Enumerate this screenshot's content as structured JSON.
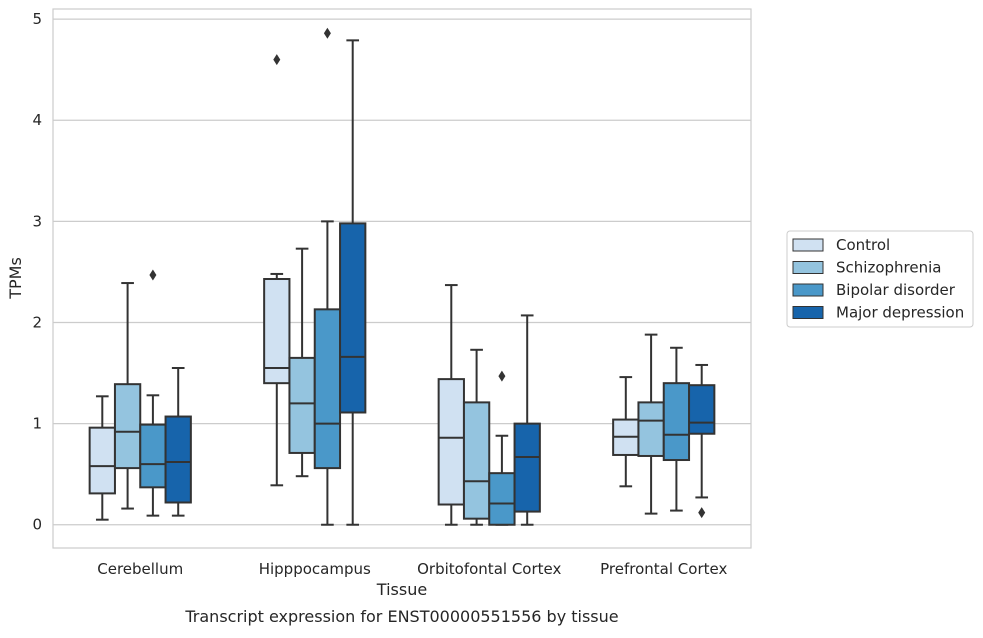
{
  "caption": "Transcript expression for ENST00000551556 by tissue",
  "chart_data": {
    "type": "box",
    "xlabel": "Tissue",
    "ylabel": "TPMs",
    "ylim": [
      -0.23,
      5.1
    ],
    "yticks": [
      0,
      1,
      2,
      3,
      4,
      5
    ],
    "categories": [
      "Cerebellum",
      "Hipppocampus",
      "Orbitofontal Cortex",
      "Prefrontal Cortex"
    ],
    "legend_position": "right",
    "grid": "horizontal",
    "series": [
      {
        "name": "Control",
        "color": "#d0e1f2",
        "boxes": [
          {
            "min": 0.05,
            "q1": 0.31,
            "median": 0.58,
            "q3": 0.96,
            "max": 1.27,
            "outliers": []
          },
          {
            "min": 0.39,
            "q1": 1.4,
            "median": 1.55,
            "q3": 2.43,
            "max": 2.48,
            "outliers": [
              4.6
            ]
          },
          {
            "min": 0.0,
            "q1": 0.2,
            "median": 0.86,
            "q3": 1.44,
            "max": 2.37,
            "outliers": []
          },
          {
            "min": 0.38,
            "q1": 0.69,
            "median": 0.87,
            "q3": 1.04,
            "max": 1.46,
            "outliers": []
          }
        ]
      },
      {
        "name": "Schizophrenia",
        "color": "#94c4df",
        "boxes": [
          {
            "min": 0.16,
            "q1": 0.56,
            "median": 0.92,
            "q3": 1.39,
            "max": 2.39,
            "outliers": []
          },
          {
            "min": 0.48,
            "q1": 0.71,
            "median": 1.2,
            "q3": 1.65,
            "max": 2.73,
            "outliers": []
          },
          {
            "min": 0.0,
            "q1": 0.06,
            "median": 0.43,
            "q3": 1.21,
            "max": 1.73,
            "outliers": []
          },
          {
            "min": 0.11,
            "q1": 0.68,
            "median": 1.03,
            "q3": 1.21,
            "max": 1.88,
            "outliers": []
          }
        ]
      },
      {
        "name": "Bipolar disorder",
        "color": "#4a98c9",
        "boxes": [
          {
            "min": 0.09,
            "q1": 0.37,
            "median": 0.6,
            "q3": 0.99,
            "max": 1.28,
            "outliers": [
              2.47
            ]
          },
          {
            "min": 0.0,
            "q1": 0.56,
            "median": 1.0,
            "q3": 2.13,
            "max": 3.0,
            "outliers": [
              4.86
            ]
          },
          {
            "min": 0.0,
            "q1": 0.0,
            "median": 0.21,
            "q3": 0.51,
            "max": 0.88,
            "outliers": [
              1.47
            ]
          },
          {
            "min": 0.14,
            "q1": 0.64,
            "median": 0.89,
            "q3": 1.4,
            "max": 1.75,
            "outliers": []
          }
        ]
      },
      {
        "name": "Major depression",
        "color": "#1764ab",
        "boxes": [
          {
            "min": 0.09,
            "q1": 0.22,
            "median": 0.62,
            "q3": 1.07,
            "max": 1.55,
            "outliers": []
          },
          {
            "min": 0.0,
            "q1": 1.11,
            "median": 1.66,
            "q3": 2.98,
            "max": 4.79,
            "outliers": []
          },
          {
            "min": 0.0,
            "q1": 0.13,
            "median": 0.67,
            "q3": 1.0,
            "max": 2.07,
            "outliers": []
          },
          {
            "min": 0.27,
            "q1": 0.9,
            "median": 1.01,
            "q3": 1.38,
            "max": 1.58,
            "outliers": [
              0.12
            ]
          }
        ]
      }
    ]
  }
}
